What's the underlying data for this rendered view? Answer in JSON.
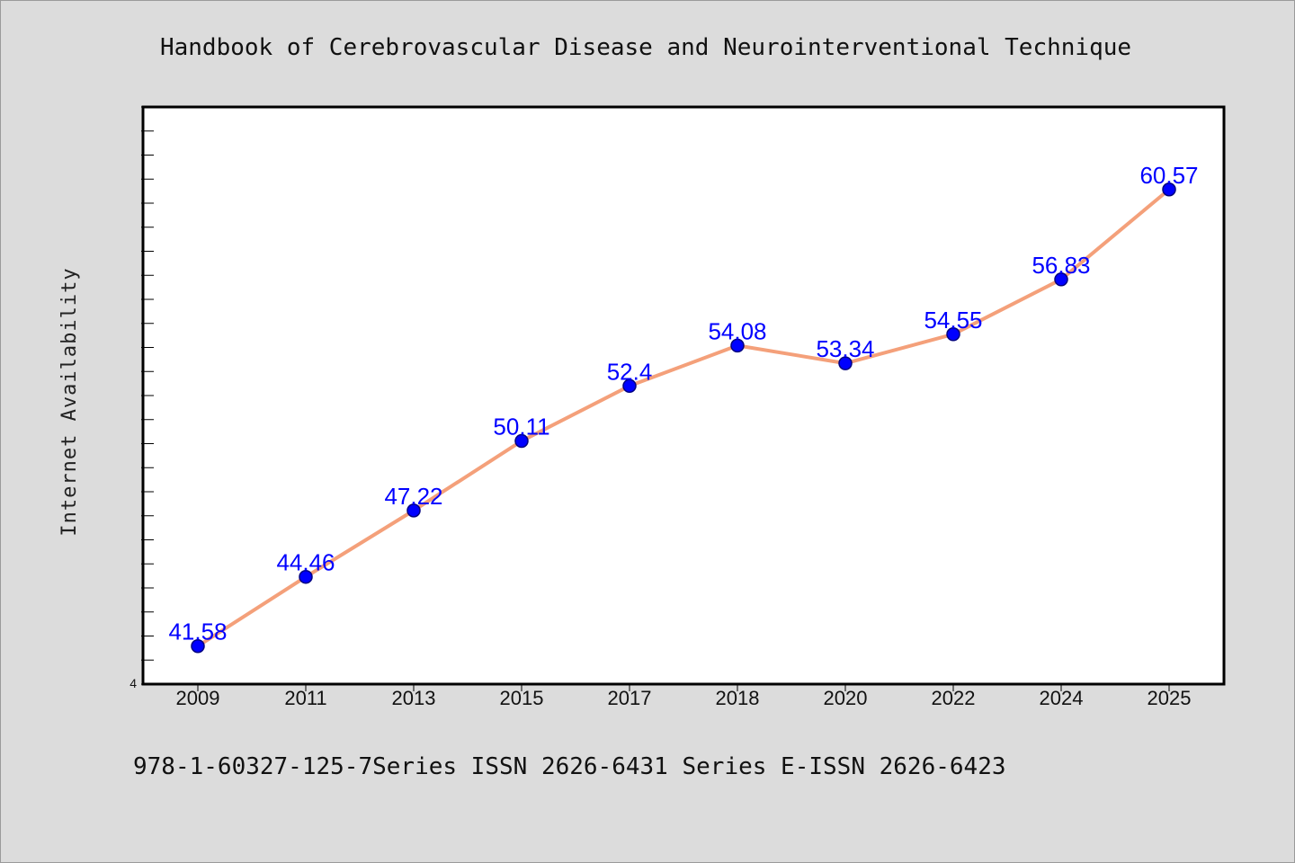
{
  "chart_data": {
    "type": "line",
    "title": "Handbook of Cerebrovascular Disease and Neurointerventional Technique",
    "ylabel": "Internet Availability",
    "xlabel": "",
    "categories": [
      "2009",
      "2011",
      "2013",
      "2015",
      "2017",
      "2018",
      "2020",
      "2022",
      "2024",
      "2025"
    ],
    "series": [
      {
        "values": [
          41.58,
          44.46,
          47.22,
          50.11,
          52.4,
          54.08,
          53.34,
          54.55,
          56.83,
          60.57
        ],
        "data_labels": [
          "41.58",
          "44.46",
          "47.22",
          "50.11",
          "52.4",
          "54.08",
          "53.34",
          "54.55",
          "56.83",
          "60.57"
        ]
      }
    ],
    "ylim": [
      40,
      64
    ],
    "y_tick_labels": [
      "4"
    ],
    "grid": false,
    "legend": "none",
    "colors": {
      "line": "#f4a07a",
      "marker": "#0000ff",
      "marker_edge": "#000080",
      "data_label": "#0000ff",
      "plot_bg": "#ffffff",
      "page_bg": "#dcdcdc"
    }
  },
  "footer": "978-1-60327-125-7Series ISSN 2626-6431 Series E-ISSN 2626-6423"
}
